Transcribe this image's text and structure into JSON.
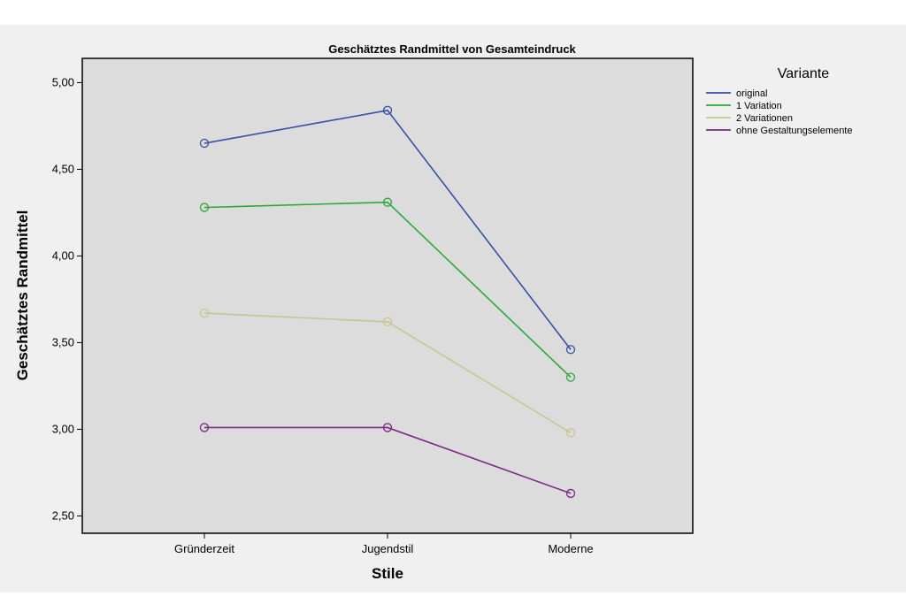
{
  "chart_data": {
    "type": "line",
    "title": "Geschätztes Randmittel von Gesamteindruck",
    "xlabel": "Stile",
    "ylabel": "Geschätztes Randmittel",
    "categories": [
      "Gründerzeit",
      "Jugendstil",
      "Moderne"
    ],
    "ylim": [
      2.4,
      5.14
    ],
    "yticks": [
      2.5,
      3.0,
      3.5,
      4.0,
      4.5,
      5.0
    ],
    "ytick_labels": [
      "2,50",
      "3,00",
      "3,50",
      "4,00",
      "4,50",
      "5,00"
    ],
    "grid": false,
    "plot_background": "#dcdcdc",
    "legend": {
      "title": "Variante",
      "position": "right"
    },
    "series": [
      {
        "name": "original",
        "values": [
          4.65,
          4.84,
          3.46
        ],
        "color": "#3a4fa3"
      },
      {
        "name": "1 Variation",
        "values": [
          4.28,
          4.31,
          3.3
        ],
        "color": "#2ea83a"
      },
      {
        "name": "2 Variationen",
        "values": [
          3.67,
          3.62,
          2.98
        ],
        "color": "#c9c493"
      },
      {
        "name": "ohne Gestaltungselemente",
        "values": [
          3.01,
          3.01,
          2.63
        ],
        "color": "#7a2a82"
      }
    ]
  }
}
